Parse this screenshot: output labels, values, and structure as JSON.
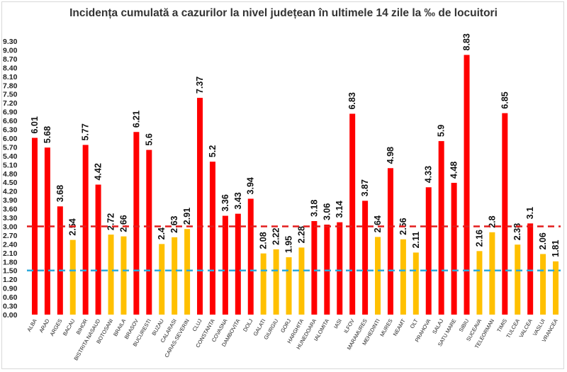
{
  "chart_data": {
    "type": "bar",
    "title": "Incidența cumulată a cazurilor la nivel județean în ultimele 14 zile la ‰ de locuitori",
    "xlabel": "",
    "ylabel": "",
    "ylim": [
      0,
      9.3
    ],
    "ytick_step": 0.3,
    "ytick_labels": [
      "0.00",
      "0.30",
      "0.60",
      "0.90",
      "1.20",
      "1.50",
      "1.80",
      "2.10",
      "2.40",
      "2.70",
      "3.00",
      "3.30",
      "3.60",
      "3.90",
      "4.20",
      "4.50",
      "4.80",
      "5.10",
      "5.40",
      "5.70",
      "6.00",
      "6.30",
      "6.60",
      "6.90",
      "7.20",
      "7.50",
      "7.80",
      "8.10",
      "8.40",
      "8.70",
      "9.00",
      "9.30"
    ],
    "grid": false,
    "legend": "none",
    "categories": [
      "ALBA",
      "ARAD",
      "ARGES",
      "BACAU",
      "BIHOR",
      "BISTRITA NASAUD",
      "BOTOSANI",
      "BRAILA",
      "BRASOV",
      "BUCURESTI",
      "BUZAU",
      "CALARASI",
      "CARAS-SEVERIN",
      "CLUJ",
      "CONSTANTA",
      "COVASNA",
      "DAMBOVITA",
      "DOLJ",
      "GALATI",
      "GIURGIU",
      "GORJ",
      "HARGHITA",
      "HUNEDOARA",
      "IALOMITA",
      "IASI",
      "ILFOV",
      "MARAMURES",
      "MEHEDINTI",
      "MURES",
      "NEAMT",
      "OLT",
      "PRAHOVA",
      "SALAJ",
      "SATU MARE",
      "SIBIU",
      "SUCEAVA",
      "TELEORMAN",
      "TIMIS",
      "TULCEA",
      "VALCEA",
      "VASLUI",
      "VRANCEA"
    ],
    "values": [
      6.01,
      5.68,
      3.68,
      2.54,
      5.77,
      4.42,
      2.72,
      2.66,
      6.21,
      5.6,
      2.4,
      2.63,
      2.91,
      7.37,
      5.2,
      3.36,
      3.43,
      3.94,
      2.08,
      2.22,
      1.95,
      2.28,
      3.18,
      3.06,
      3.14,
      6.83,
      3.87,
      2.64,
      4.98,
      2.56,
      2.11,
      4.33,
      5.9,
      4.48,
      8.83,
      2.16,
      2.8,
      6.85,
      2.38,
      3.1,
      2.06,
      1.81
    ],
    "data_labels": [
      "6.01",
      "5.68",
      "3.68",
      "2.54",
      "5.77",
      "4.42",
      "2.72",
      "2.66",
      "6.21",
      "5.6",
      "2.4",
      "2.63",
      "2.91",
      "7.37",
      "5.2",
      "3.36",
      "3.43",
      "3.94",
      "2.08",
      "2.22",
      "1.95",
      "2.28",
      "3.18",
      "3.06",
      "3.14",
      "6.83",
      "3.87",
      "2.64",
      "4.98",
      "2.56",
      "2.11",
      "4.33",
      "5.9",
      "4.48",
      "8.83",
      "2.16",
      "2.8",
      "6.85",
      "2.38",
      "3.1",
      "2.06",
      "1.81"
    ],
    "bar_colors": [
      "red",
      "red",
      "red",
      "yellow",
      "red",
      "red",
      "yellow",
      "yellow",
      "red",
      "red",
      "yellow",
      "yellow",
      "yellow",
      "red",
      "red",
      "red",
      "red",
      "red",
      "yellow",
      "yellow",
      "yellow",
      "yellow",
      "red",
      "red",
      "red",
      "red",
      "red",
      "yellow",
      "red",
      "yellow",
      "yellow",
      "red",
      "red",
      "red",
      "red",
      "yellow",
      "yellow",
      "red",
      "yellow",
      "red",
      "yellow",
      "yellow"
    ],
    "reference_lines": [
      {
        "value": 3.0,
        "color": "#e31d1d",
        "style": "dashed"
      },
      {
        "value": 1.5,
        "color": "#2eaadc",
        "style": "dashed"
      }
    ],
    "colors": {
      "red": "#ff0000",
      "yellow": "#ffc000"
    }
  }
}
